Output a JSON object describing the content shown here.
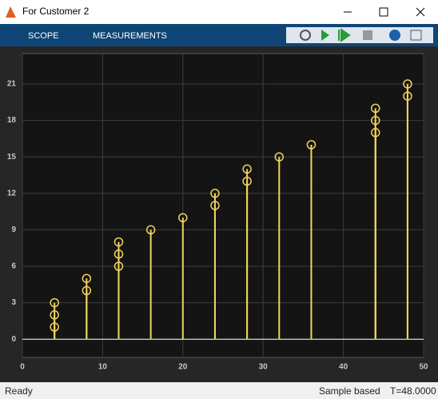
{
  "window": {
    "title": "For Customer 2",
    "tabs": [
      "SCOPE",
      "MEASUREMENTS"
    ],
    "status": {
      "left": "Ready",
      "mode": "Sample based",
      "time": "T=48.0000"
    }
  },
  "chart_data": {
    "type": "stem",
    "color": "#f2d35c",
    "grid": true,
    "series": [
      {
        "color": "#f2d35c",
        "x": [
          4,
          4,
          4,
          8,
          8,
          12,
          12,
          12,
          16,
          20,
          24,
          24,
          28,
          28,
          32,
          36,
          44,
          44,
          44,
          48,
          48
        ],
        "values": [
          1,
          2,
          3,
          4,
          5,
          6,
          7,
          8,
          9,
          10,
          11,
          12,
          13,
          14,
          15,
          16,
          17,
          18,
          19,
          20,
          21
        ]
      }
    ],
    "xlim": [
      0,
      50
    ],
    "xticks": [
      0,
      10,
      20,
      30,
      40,
      50
    ],
    "ylim": [
      -1.5,
      23.5
    ],
    "yticks": [
      0,
      3,
      6,
      9,
      12,
      15,
      18,
      21
    ]
  }
}
